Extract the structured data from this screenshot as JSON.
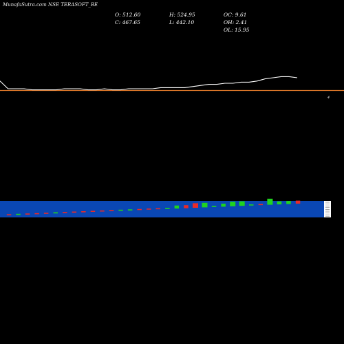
{
  "header": {
    "title": "MunafaSutra.com NSE TERASOFT_BE",
    "open": "O: 512.60",
    "high": "H: 524.95",
    "close": "C: 467.65",
    "low": "L: 442.10",
    "oc": "OC: 9.61",
    "oh": "OH: 2.41",
    "ol": "OL: 15.95"
  },
  "colors": {
    "background": "#000000",
    "price_line": "#ffffff",
    "reference_line": "#e0782a",
    "volume_band": "#0a47b4",
    "up_candle": "#1fd41f",
    "down_candle": "#e82a2a"
  },
  "reference_label": "4",
  "chart_data": [
    {
      "type": "line",
      "series": [
        {
          "values": [
            452,
            445,
            445,
            445,
            444,
            444,
            444,
            444,
            445,
            445,
            445,
            444,
            444,
            445,
            444,
            444,
            445,
            445,
            445,
            445,
            446,
            446,
            446,
            446,
            447,
            448,
            449,
            449,
            450,
            450,
            451,
            451,
            452,
            454,
            455,
            456,
            456,
            455
          ]
        }
      ],
      "reference_line": 441
    },
    {
      "type": "bar",
      "candles": [
        {
          "dir": "down",
          "size": 1
        },
        {
          "dir": "up",
          "size": 1
        },
        {
          "dir": "down",
          "size": 1
        },
        {
          "dir": "down",
          "size": 1
        },
        {
          "dir": "down",
          "size": 1
        },
        {
          "dir": "up",
          "size": 1
        },
        {
          "dir": "down",
          "size": 1
        },
        {
          "dir": "down",
          "size": 1
        },
        {
          "dir": "down",
          "size": 1
        },
        {
          "dir": "down",
          "size": 1
        },
        {
          "dir": "down",
          "size": 1
        },
        {
          "dir": "down",
          "size": 1
        },
        {
          "dir": "up",
          "size": 1
        },
        {
          "dir": "up",
          "size": 1
        },
        {
          "dir": "down",
          "size": 1
        },
        {
          "dir": "down",
          "size": 1
        },
        {
          "dir": "down",
          "size": 1
        },
        {
          "dir": "up",
          "size": 1
        },
        {
          "dir": "up",
          "size": 2
        },
        {
          "dir": "down",
          "size": 2
        },
        {
          "dir": "down",
          "size": 3
        },
        {
          "dir": "up",
          "size": 3
        },
        {
          "dir": "up",
          "size": 1
        },
        {
          "dir": "up",
          "size": 2
        },
        {
          "dir": "up",
          "size": 3
        },
        {
          "dir": "up",
          "size": 3
        },
        {
          "dir": "up",
          "size": 1
        },
        {
          "dir": "down",
          "size": 1
        },
        {
          "dir": "up",
          "size": 4
        },
        {
          "dir": "up",
          "size": 2
        },
        {
          "dir": "up",
          "size": 2
        },
        {
          "dir": "down",
          "size": 2
        }
      ]
    }
  ]
}
